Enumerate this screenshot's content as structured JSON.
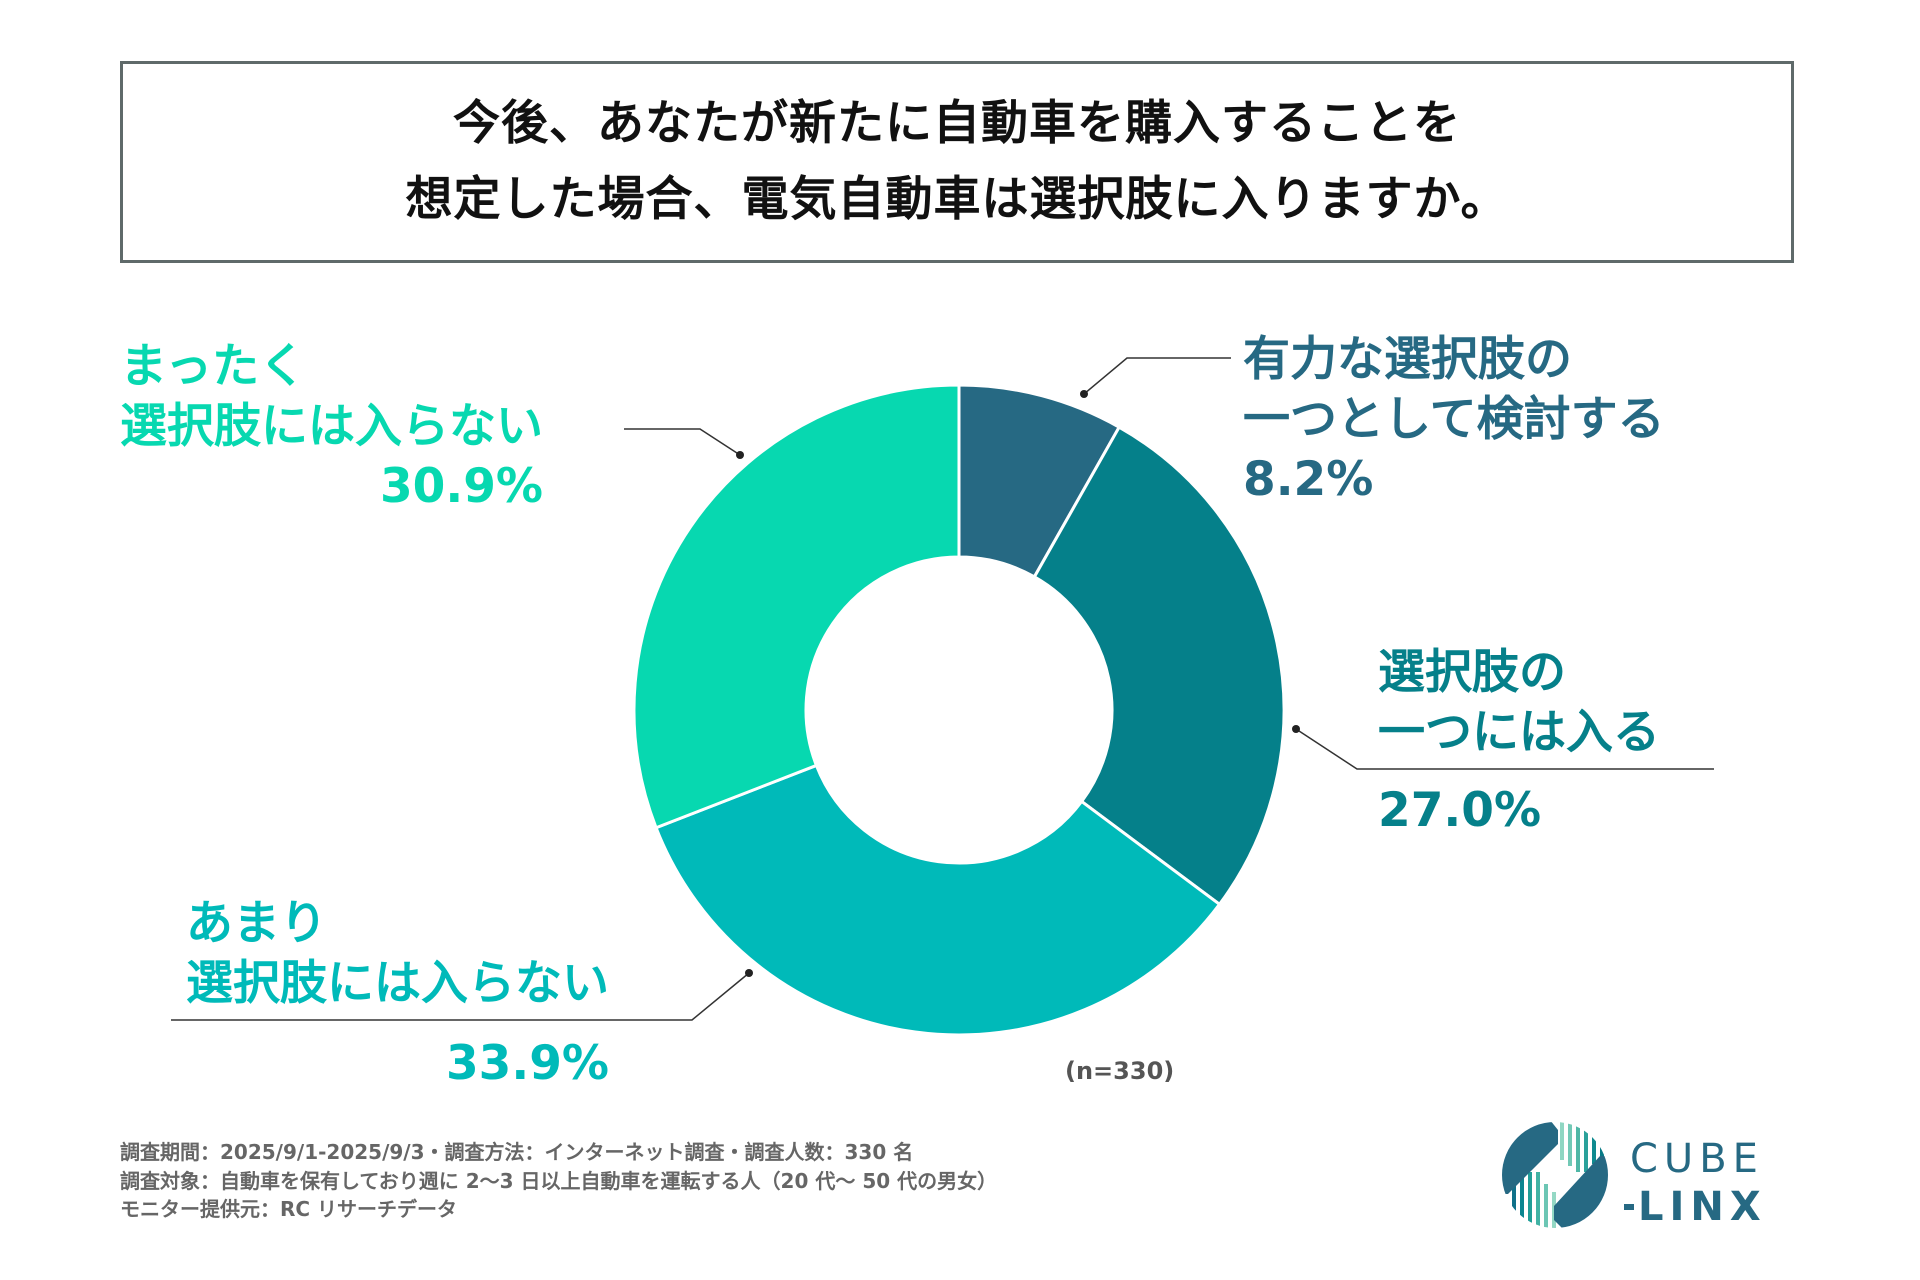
{
  "title": {
    "line1": "今後、あなたが新たに自動車を購入することを",
    "line2": "想定した場合、電気自動車は選択肢に入りますか。"
  },
  "chart_data": {
    "type": "pie",
    "donut": true,
    "title": "今後、あなたが新たに自動車を購入することを想定した場合、電気自動車は選択肢に入りますか。",
    "categories": [
      "有力な選択肢の一つとして検討する",
      "選択肢の一つには入る",
      "あまり選択肢には入らない",
      "まったく選択肢には入らない"
    ],
    "values": [
      8.2,
      27.0,
      33.9,
      30.9
    ],
    "value_labels": [
      "8.2%",
      "27.0%",
      "33.9%",
      "30.9%"
    ],
    "colors": [
      "#266983",
      "#05808a",
      "#00bab9",
      "#07d8b0"
    ],
    "start": "top",
    "direction": "clockwise",
    "sample_note": "(n=330)"
  },
  "labels": [
    {
      "lines": [
        "有力な選択肢の",
        "一つとして検討する"
      ],
      "pct": "8.2%"
    },
    {
      "lines": [
        "選択肢の",
        "一つには入る"
      ],
      "pct": "27.0%"
    },
    {
      "lines": [
        "あまり",
        "選択肢には入らない"
      ],
      "pct": "33.9%"
    },
    {
      "lines": [
        "まったく",
        "選択肢には入らない"
      ],
      "pct": "30.9%"
    }
  ],
  "footer": {
    "line1": "調査期間：2025/9/1-2025/9/3・調査方法：インターネット調査・調査人数：330 名",
    "line2": "調査対象：自動車を保有しており週に 2〜3 日以上自動車を運転する人（20 代〜 50 代の男女）",
    "line3": "モニター提供元：RC リサーチデータ"
  },
  "logo": {
    "text_top": "CUBE",
    "text_bottom": "LINX",
    "color": "#266983"
  }
}
